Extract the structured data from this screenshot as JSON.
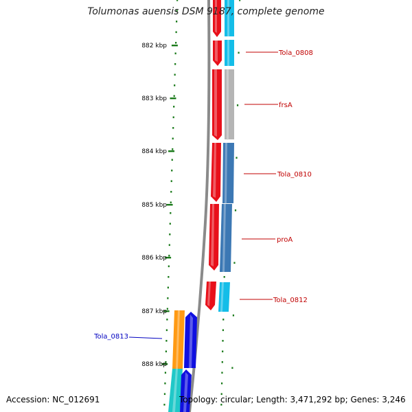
{
  "title": "Tolumonas auensis DSM 9187, complete genome",
  "accession": "Accession: NC_012691",
  "topology": "Topology: circular; Length: 3,471,292 bp; Genes: 3,246",
  "ruler": {
    "unit": "kbp",
    "ticks": [
      {
        "value": 882,
        "label": "882 kbp"
      },
      {
        "value": 883,
        "label": "883 kbp"
      },
      {
        "value": 884,
        "label": "884 kbp"
      },
      {
        "value": 885,
        "label": "885 kbp"
      },
      {
        "value": 886,
        "label": "886 kbp"
      },
      {
        "value": 887,
        "label": "887 kbp"
      },
      {
        "value": 888,
        "label": "888 kbp"
      }
    ]
  },
  "colors": {
    "backbone": "#8a8a8a",
    "ruler_dots": "#1a7a1a",
    "forward_cds": "#e8101a",
    "reverse_cds": "#1010e0",
    "forward_label": "#c00000",
    "reverse_label": "#0000c0",
    "cyan_feature": "#14bde8",
    "gray_feature": "#b5b5b5",
    "steel_feature": "#3c78b4",
    "orange_feature": "#ff9a14",
    "teal_feature": "#20c8c8"
  },
  "features": [
    {
      "name": "Tola_0808",
      "strand": "forward"
    },
    {
      "name": "frsA",
      "strand": "forward"
    },
    {
      "name": "Tola_0810",
      "strand": "forward"
    },
    {
      "name": "proA",
      "strand": "forward"
    },
    {
      "name": "Tola_0812",
      "strand": "forward"
    },
    {
      "name": "Tola_0813",
      "strand": "reverse"
    }
  ]
}
